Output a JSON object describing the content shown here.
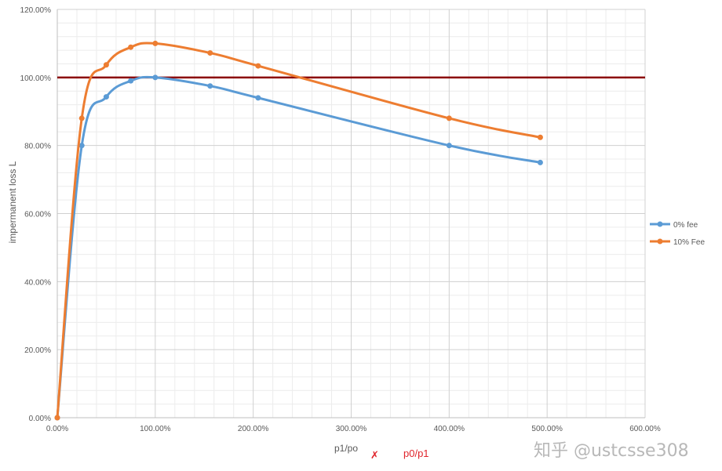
{
  "chart_data": {
    "type": "line",
    "title": "",
    "xlabel": "p1/po",
    "ylabel": "impermanent loss L",
    "x_ticks": [
      "0.00%",
      "100.00%",
      "200.00%",
      "300.00%",
      "400.00%",
      "500.00%",
      "600.00%"
    ],
    "y_ticks": [
      "0.00%",
      "20.00%",
      "40.00%",
      "60.00%",
      "80.00%",
      "100.00%",
      "120.00%"
    ],
    "xlim": [
      0,
      600
    ],
    "ylim": [
      0,
      120
    ],
    "grid": true,
    "legend_position": "right",
    "series": [
      {
        "name": "0% fee",
        "color": "#5b9bd5",
        "x": [
          0,
          25,
          50,
          75,
          100,
          156,
          205,
          400,
          493
        ],
        "y": [
          0,
          80,
          94.3,
          99,
          100,
          97.5,
          94,
          80,
          75
        ]
      },
      {
        "name": "10% Fee",
        "color": "#ed7d31",
        "x": [
          0,
          25,
          50,
          75,
          100,
          156,
          205,
          400,
          493
        ],
        "y": [
          0,
          88,
          103.7,
          108.9,
          110,
          107.2,
          103.4,
          88,
          82.4
        ]
      }
    ],
    "reference_line": {
      "y": 100,
      "color": "#8b0000"
    }
  },
  "annotation": {
    "text": "p0/p1",
    "mark": "✗",
    "color": "#e0242b"
  },
  "watermark": {
    "text": "知乎 @ustcsse308"
  }
}
